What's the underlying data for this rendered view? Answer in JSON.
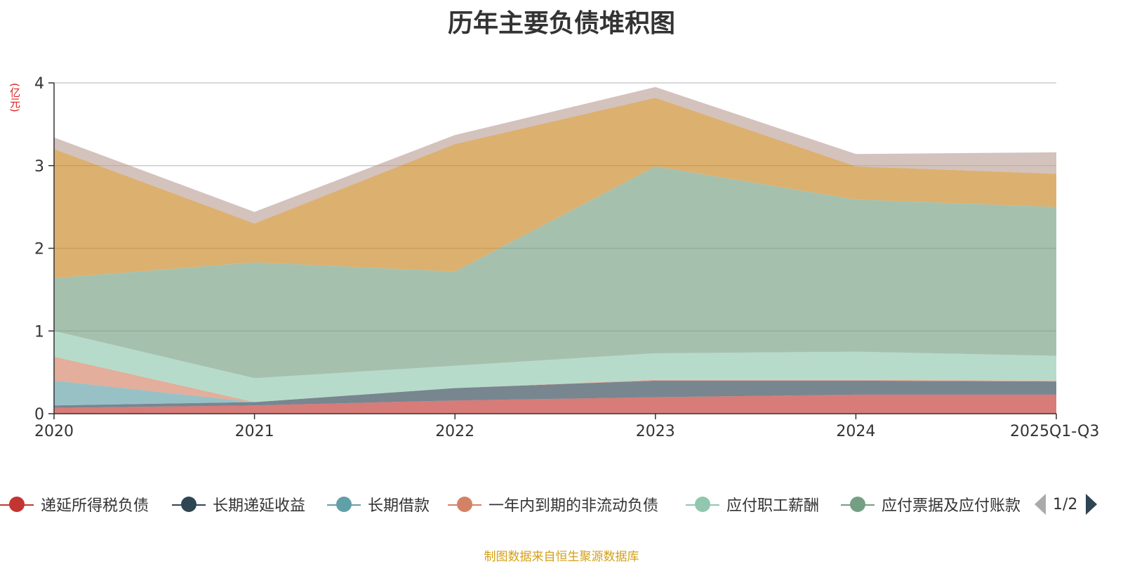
{
  "chart_data": {
    "type": "area",
    "stacked": true,
    "title": "历年主要负债堆积图",
    "unit_label": "(亿元)",
    "categories": [
      "2020",
      "2021",
      "2022",
      "2023",
      "2024",
      "2025Q1-Q3"
    ],
    "ylim": [
      0,
      4
    ],
    "yticks": [
      0,
      1,
      2,
      3,
      4
    ],
    "grid": true,
    "legend_position": "bottom",
    "series": [
      {
        "name": "递延所得税负债",
        "color": "#c23531",
        "values": [
          0.07,
          0.1,
          0.16,
          0.2,
          0.23,
          0.23
        ]
      },
      {
        "name": "长期递延收益",
        "color": "#2f4554",
        "values": [
          0.03,
          0.04,
          0.15,
          0.2,
          0.17,
          0.16
        ]
      },
      {
        "name": "长期借款",
        "color": "#61a0a8",
        "values": [
          0.3,
          0.0,
          0.0,
          0.0,
          0.0,
          0.0
        ]
      },
      {
        "name": "一年内到期的非流动负债",
        "color": "#d48265",
        "values": [
          0.29,
          0.0,
          0.0,
          0.01,
          0.01,
          0.01
        ]
      },
      {
        "name": "应付职工薪酬",
        "color": "#91c7ae",
        "values": [
          0.31,
          0.29,
          0.27,
          0.32,
          0.34,
          0.3
        ]
      },
      {
        "name": "应付票据及应付账款",
        "color": "#749f83",
        "values": [
          0.64,
          1.4,
          1.14,
          2.26,
          1.84,
          1.8
        ]
      },
      {
        "name": "",
        "color": "#ca8622",
        "values": [
          1.56,
          0.47,
          1.54,
          0.83,
          0.4,
          0.4
        ]
      },
      {
        "name": "",
        "color": "#bda29a",
        "values": [
          0.14,
          0.14,
          0.11,
          0.13,
          0.15,
          0.26
        ]
      }
    ]
  },
  "legend": {
    "page": "1/2",
    "items": [
      {
        "label": "递延所得税负债",
        "color": "#c23531"
      },
      {
        "label": "长期递延收益",
        "color": "#2f4554"
      },
      {
        "label": "长期借款",
        "color": "#61a0a8"
      },
      {
        "label": "一年内到期的非流动负债",
        "color": "#d48265"
      },
      {
        "label": "应付职工薪酬",
        "color": "#91c7ae"
      },
      {
        "label": "应付票据及应付账款",
        "color": "#749f83"
      }
    ]
  },
  "footer": {
    "source": "制图数据来自恒生聚源数据库"
  }
}
